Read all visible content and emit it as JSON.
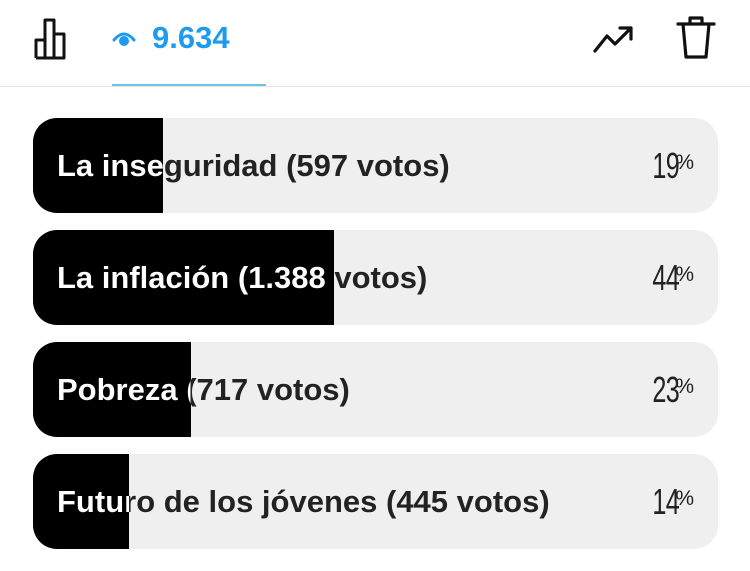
{
  "header": {
    "views_count": "9.634",
    "accent_color": "#1d9bf0",
    "icons": [
      "bar-chart-icon",
      "eye-icon",
      "trending-up-icon",
      "trash-icon"
    ]
  },
  "poll": {
    "options": [
      {
        "label": "La inseguridad (597 votos)",
        "percent": 19,
        "percent_label": "19",
        "sign": "%"
      },
      {
        "label": "La inflación (1.388 votos)",
        "percent": 44,
        "percent_label": "44",
        "sign": "%"
      },
      {
        "label": "Pobreza (717 votos)",
        "percent": 23,
        "percent_label": "23",
        "sign": "%"
      },
      {
        "label": "Futuro de los jóvenes (445 votos)",
        "percent": 14,
        "percent_label": "14",
        "sign": "%"
      }
    ]
  }
}
